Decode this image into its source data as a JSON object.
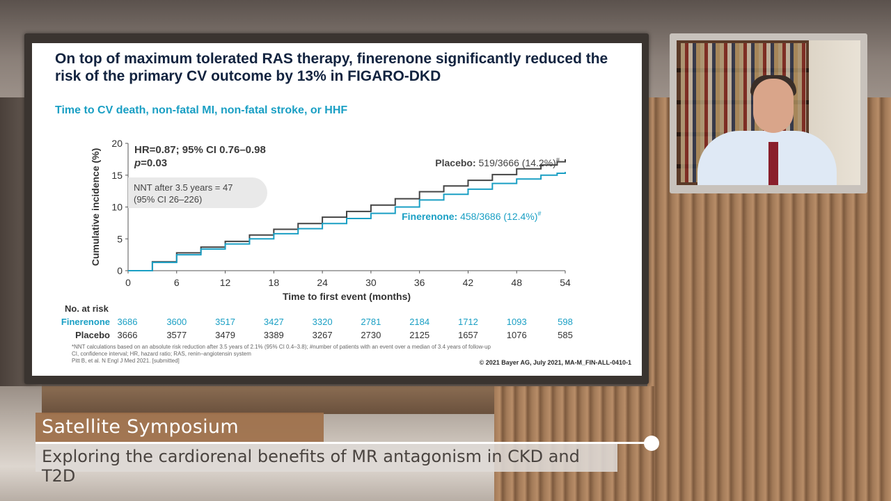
{
  "slide": {
    "title": "On top of maximum tolerated RAS therapy, finerenone significantly reduced the risk of the primary CV outcome by 13% in FIGARO-DKD",
    "subtitle": "Time to CV death, non-fatal MI, non-fatal stroke, or HHF",
    "hr_line1": "HR=0.87; 95% CI 0.76–0.98",
    "hr_p_label": "p",
    "hr_p_value": "=0.03",
    "nnt_line1": "NNT after 3.5 years = 47",
    "nnt_line2": "(95% CI 26–226)",
    "footnote_line1": "*NNT calculations based on an absolute risk reduction after 3.5 years of 2.1% (95% CI 0.4–3.8); #number of patients with an event over a median of 3.4 years of follow-up",
    "footnote_line2": "CI, confidence interval; HR, hazard ratio; RAS, renin–angiotensin system",
    "footnote_line3": "Pitt B, et al. N Engl J Med 2021. [submitted]",
    "copyright": "© 2021 Bayer AG, July 2021, MA-M_FIN-ALL-0410-1"
  },
  "chart_data": {
    "type": "line",
    "xlabel": "Time to first event (months)",
    "ylabel": "Cumulative incidence (%)",
    "xlim": [
      0,
      54
    ],
    "ylim": [
      0,
      20
    ],
    "xticks": [
      0,
      6,
      12,
      18,
      24,
      30,
      36,
      42,
      48,
      54
    ],
    "yticks": [
      0,
      5,
      10,
      15,
      20
    ],
    "series": [
      {
        "name": "Placebo",
        "label_name": "Placebo:",
        "label_value": "519/3666 (14.2%)",
        "label_mark": "#",
        "color": "#444444",
        "x": [
          0,
          3,
          6,
          9,
          12,
          15,
          18,
          21,
          24,
          27,
          30,
          33,
          36,
          39,
          42,
          45,
          48,
          51,
          53,
          54
        ],
        "y": [
          0,
          1.4,
          2.8,
          3.7,
          4.6,
          5.6,
          6.5,
          7.4,
          8.4,
          9.3,
          10.3,
          11.3,
          12.4,
          13.3,
          14.2,
          15.1,
          16.0,
          16.6,
          17.1,
          17.5
        ]
      },
      {
        "name": "Finerenone",
        "label_name": "Finerenone:",
        "label_value": "458/3686 (12.4%)",
        "label_mark": "#",
        "color": "#1a9fc4",
        "x": [
          0,
          3,
          6,
          9,
          12,
          15,
          18,
          21,
          24,
          27,
          30,
          33,
          36,
          39,
          42,
          45,
          48,
          51,
          53,
          54
        ],
        "y": [
          0,
          1.3,
          2.5,
          3.4,
          4.2,
          5.0,
          5.8,
          6.6,
          7.4,
          8.2,
          9.0,
          10.0,
          11.1,
          12.0,
          12.8,
          13.7,
          14.4,
          15.0,
          15.3,
          15.5
        ]
      }
    ],
    "at_risk": {
      "title": "No. at risk",
      "rows": [
        {
          "label": "Finerenone",
          "color": "#1a9fc4",
          "values": [
            "3686",
            "3600",
            "3517",
            "3427",
            "3320",
            "2781",
            "2184",
            "1712",
            "1093",
            "598"
          ]
        },
        {
          "label": "Placebo",
          "color": "#333333",
          "values": [
            "3666",
            "3577",
            "3479",
            "3389",
            "3267",
            "2730",
            "2125",
            "1657",
            "1076",
            "585"
          ]
        }
      ]
    }
  },
  "lower_third": {
    "title": "Satellite Symposium",
    "subtitle": "Exploring the cardiorenal benefits of MR antagonism in CKD and T2D"
  }
}
